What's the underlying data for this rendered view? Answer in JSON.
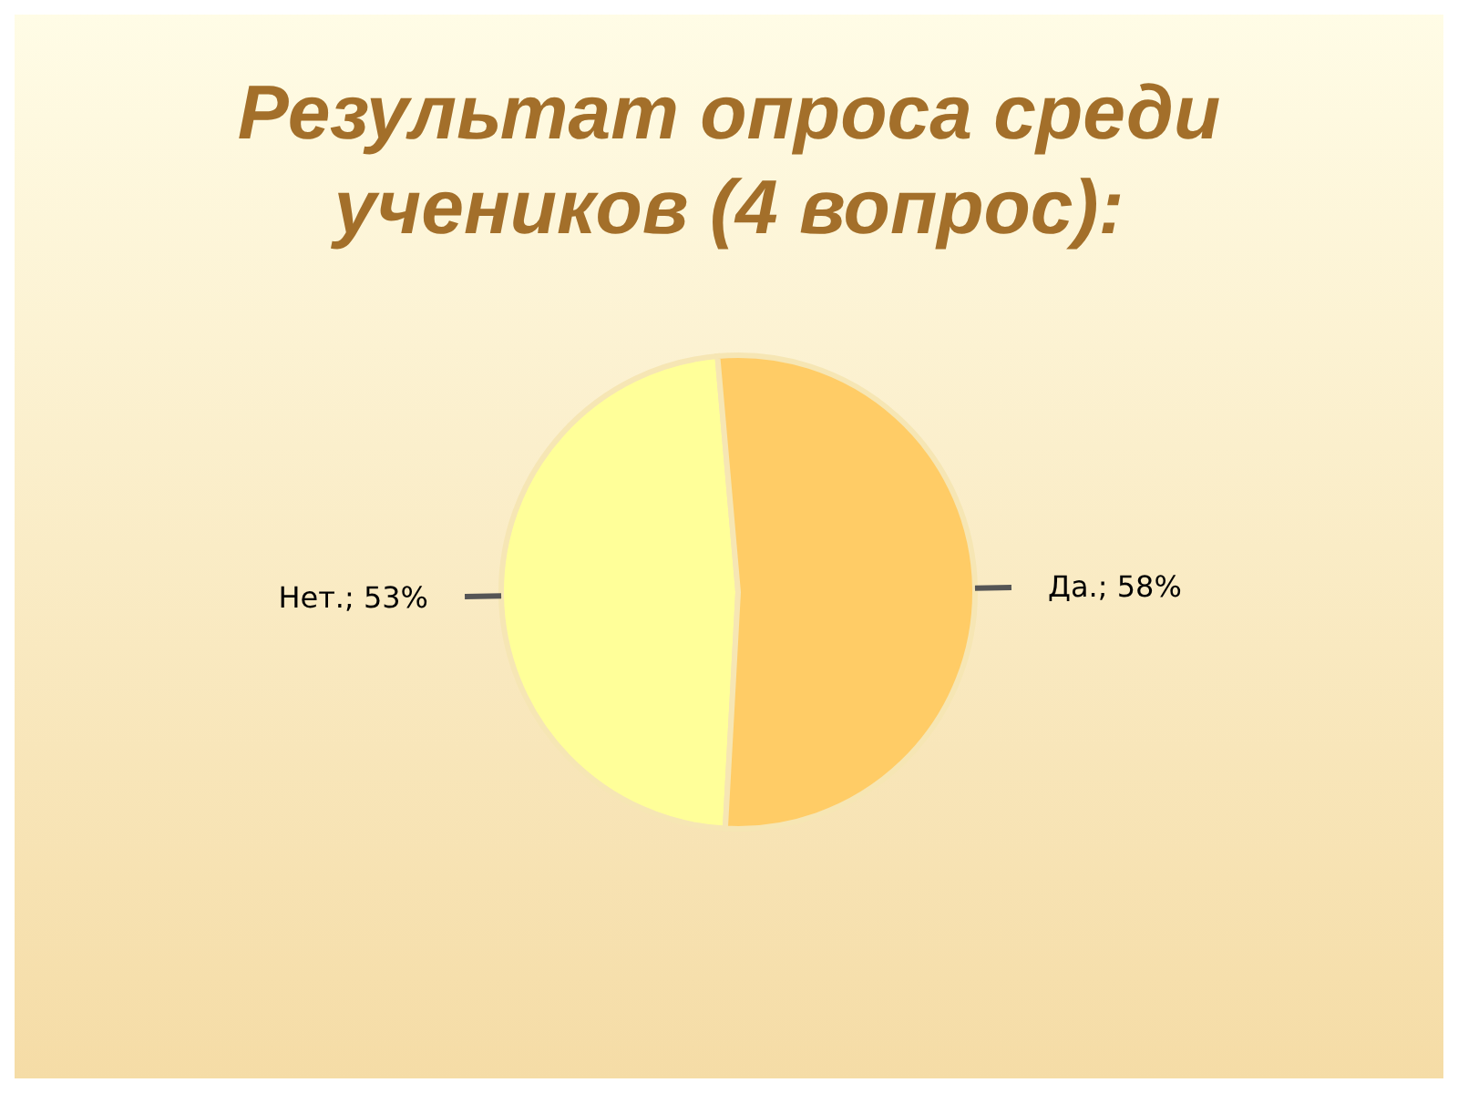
{
  "chart_data": {
    "type": "pie",
    "title": "Результат опроса среди учеников (4 вопрос):",
    "categories": [
      "Нет.",
      "Да."
    ],
    "values": [
      53,
      58
    ],
    "colors": [
      "#ffff99",
      "#ffcc66"
    ],
    "value_labels": [
      "53%",
      "58%"
    ],
    "legend": false
  }
}
